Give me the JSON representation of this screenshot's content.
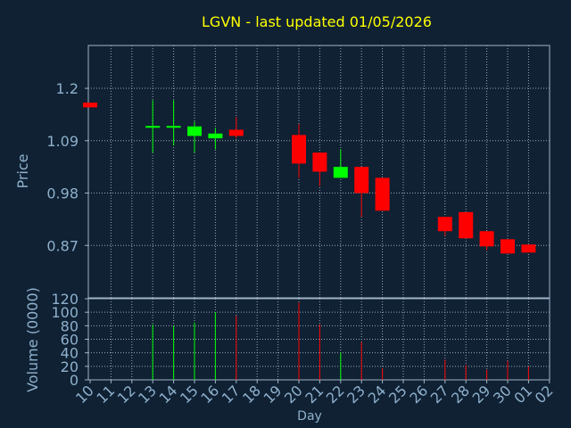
{
  "chart_data": {
    "type": "candlestick",
    "title": "LGVN - last updated 01/05/2026",
    "xlabel": "Day",
    "ylabel_price": "Price",
    "ylabel_volume": "Volume (0000)",
    "price_ticks": [
      "1.2",
      "1.09",
      "0.98",
      "0.87"
    ],
    "price_tick_values": [
      1.2,
      1.09,
      0.98,
      0.87
    ],
    "price_range": [
      0.76,
      1.29
    ],
    "volume_ticks": [
      "0",
      "20",
      "40",
      "60",
      "80",
      "100",
      "120"
    ],
    "volume_tick_values": [
      0,
      20,
      40,
      60,
      80,
      100,
      120
    ],
    "volume_range": [
      0,
      120
    ],
    "x_ticks": [
      "10",
      "11",
      "12",
      "13",
      "14",
      "15",
      "16",
      "17",
      "18",
      "19",
      "20",
      "21",
      "22",
      "23",
      "24",
      "25",
      "26",
      "27",
      "28",
      "29",
      "30",
      "01",
      "02"
    ],
    "grid": true,
    "colors": {
      "background": "#0f2133",
      "title": "#ffff00",
      "axis_text": "#8fb0cc",
      "up": "#00ff00",
      "down": "#ff0000",
      "grid": "#9aa8b8",
      "border": "#a0b4c8"
    },
    "candles": [
      {
        "day": "10",
        "open": 1.17,
        "close": 1.16,
        "high": 1.17,
        "low": 1.16,
        "volume": 0
      },
      {
        "day": "13",
        "open": 1.119,
        "close": 1.119,
        "high": 1.175,
        "low": 1.065,
        "volume": 82
      },
      {
        "day": "14",
        "open": 1.119,
        "close": 1.119,
        "high": 1.175,
        "low": 1.08,
        "volume": 80
      },
      {
        "day": "15",
        "open": 1.1,
        "close": 1.12,
        "high": 1.13,
        "low": 1.065,
        "volume": 85
      },
      {
        "day": "16",
        "open": 1.095,
        "close": 1.105,
        "high": 1.117,
        "low": 1.072,
        "volume": 100
      },
      {
        "day": "17",
        "open": 1.113,
        "close": 1.1,
        "high": 1.14,
        "low": 1.095,
        "volume": 95
      },
      {
        "day": "20",
        "open": 1.102,
        "close": 1.042,
        "high": 1.125,
        "low": 1.012,
        "volume": 114
      },
      {
        "day": "21",
        "open": 1.065,
        "close": 1.025,
        "high": 1.065,
        "low": 0.995,
        "volume": 82
      },
      {
        "day": "22",
        "open": 1.012,
        "close": 1.035,
        "high": 1.072,
        "low": 1.012,
        "volume": 40
      },
      {
        "day": "23",
        "open": 1.035,
        "close": 0.98,
        "high": 1.035,
        "low": 0.93,
        "volume": 56
      },
      {
        "day": "24",
        "open": 1.012,
        "close": 0.943,
        "high": 1.012,
        "low": 0.943,
        "volume": 17
      },
      {
        "day": "27",
        "open": 0.93,
        "close": 0.9,
        "high": 0.93,
        "low": 0.89,
        "volume": 30
      },
      {
        "day": "28",
        "open": 0.94,
        "close": 0.885,
        "high": 0.94,
        "low": 0.885,
        "volume": 22
      },
      {
        "day": "29",
        "open": 0.9,
        "close": 0.868,
        "high": 0.9,
        "low": 0.86,
        "volume": 15
      },
      {
        "day": "30",
        "open": 0.883,
        "close": 0.853,
        "high": 0.883,
        "low": 0.853,
        "volume": 28
      },
      {
        "day": "01",
        "open": 0.872,
        "close": 0.855,
        "high": 0.872,
        "low": 0.855,
        "volume": 20
      }
    ]
  }
}
